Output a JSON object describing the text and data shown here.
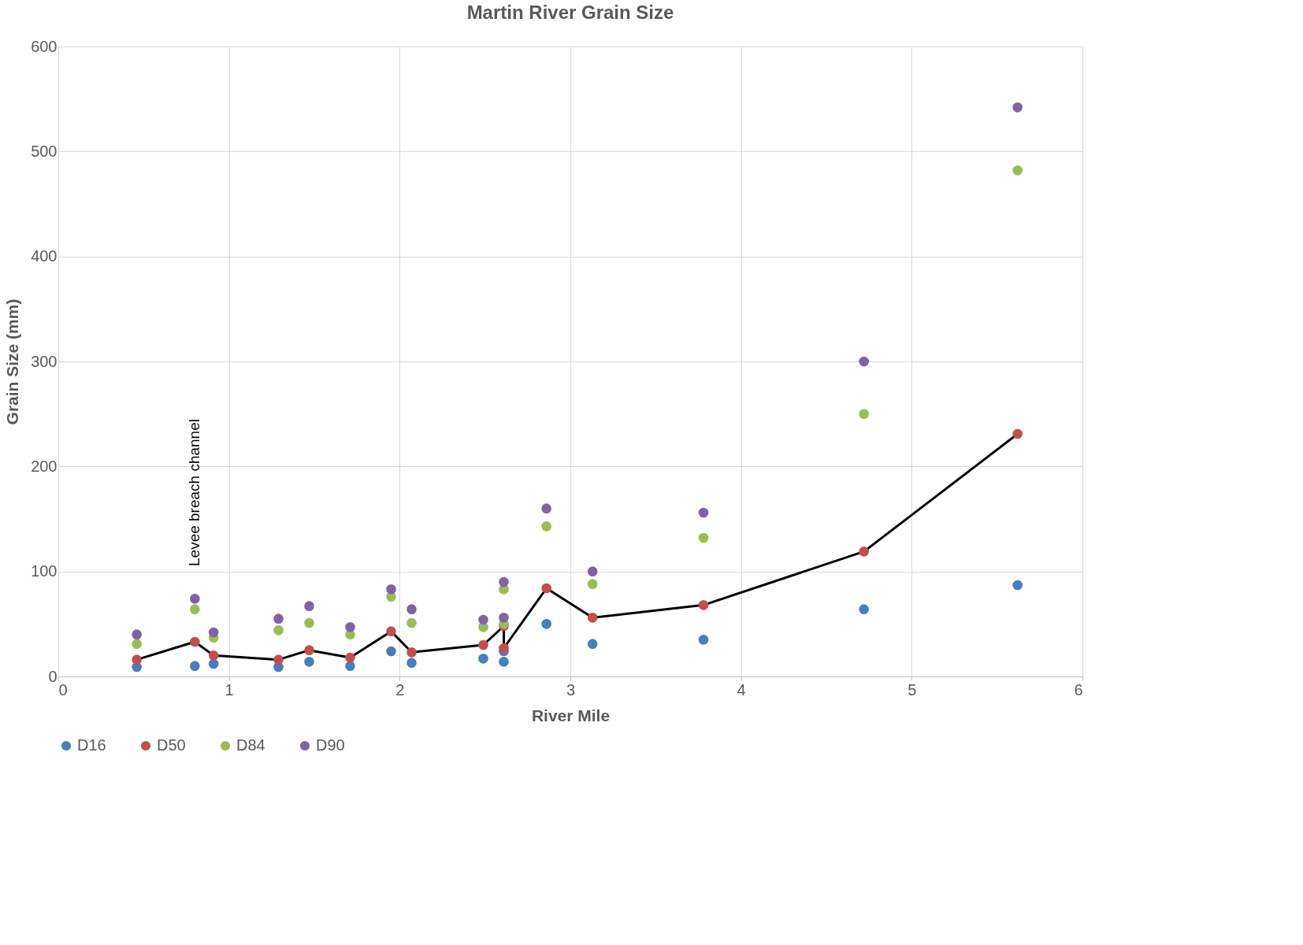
{
  "chart_data": {
    "type": "scatter",
    "title": "Martin River Grain Size",
    "xlabel": "River Mile",
    "ylabel": "Grain Size (mm)",
    "x": [
      0.46,
      0.8,
      0.91,
      1.29,
      1.47,
      1.71,
      1.95,
      2.07,
      2.49,
      2.61,
      2.61,
      2.86,
      3.13,
      3.78,
      4.72,
      5.62
    ],
    "series": [
      {
        "name": "D16",
        "color": "#4a7ebb",
        "values": [
          9,
          10,
          12,
          9,
          14,
          10,
          24,
          13,
          17,
          24,
          14,
          50,
          31,
          35,
          64,
          87
        ]
      },
      {
        "name": "D50",
        "type": "line",
        "color": "#c0504d",
        "values": [
          16,
          33,
          20,
          16,
          25,
          18,
          43,
          23,
          30,
          48,
          27,
          84,
          56,
          68,
          119,
          231
        ]
      },
      {
        "name": "D84",
        "color": "#9bbb59",
        "values": [
          31,
          64,
          37,
          44,
          51,
          40,
          76,
          51,
          47,
          50,
          83,
          143,
          88,
          132,
          250,
          482
        ]
      },
      {
        "name": "D90",
        "color": "#8064a2",
        "values": [
          40,
          74,
          42,
          55,
          67,
          47,
          83,
          64,
          54,
          56,
          90,
          160,
          100,
          156,
          300,
          542
        ]
      }
    ],
    "xlim": [
      0,
      6
    ],
    "xticks": [
      0,
      1,
      2,
      3,
      4,
      5,
      6
    ],
    "ylim": [
      0,
      600
    ],
    "yticks": [
      0,
      100,
      200,
      300,
      400,
      500,
      600
    ],
    "grid": true,
    "legend": "bottom",
    "marker": "circle",
    "annotations": [
      "Levee breach channel"
    ]
  }
}
